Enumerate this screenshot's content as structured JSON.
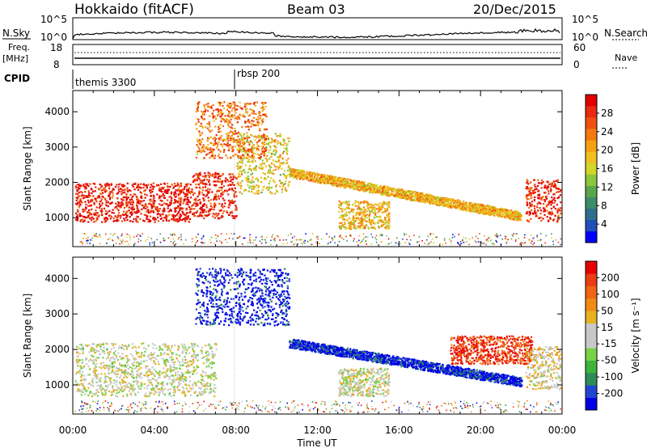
{
  "header": {
    "title": "Hokkaido (fitACF)",
    "beam": "Beam 03",
    "date": "20/Dec/2015"
  },
  "summary": {
    "nsky_label": "N.Sky",
    "nsky_ticks": [
      "10^5",
      "10^0"
    ],
    "nsearch_label": "N.Search",
    "nsearch_ticks": [
      "10^5",
      "10^0"
    ],
    "freq_label": "Freq.",
    "freq_unit": "[MHz]",
    "freq_ticks": [
      "18",
      "8"
    ],
    "nave_label": "Nave",
    "nave_ticks": [
      "60",
      "0"
    ],
    "cpid_label": "CPID",
    "cpid_segments": [
      {
        "label": "themis 3300",
        "start_hour": 0
      },
      {
        "label": "rbsp 200",
        "start_hour": 8
      }
    ]
  },
  "x_axis": {
    "label": "Time UT",
    "ticks": [
      "00:00",
      "04:00",
      "08:00",
      "12:00",
      "16:00",
      "20:00",
      "00:00"
    ],
    "range_hours": [
      0,
      24
    ]
  },
  "chart_data": [
    {
      "type": "heatmap",
      "name": "power-panel",
      "ylabel": "Slant Range [km]",
      "yticks": [
        1000,
        2000,
        3000,
        4000
      ],
      "ylim": [
        180,
        4600
      ],
      "xlim": [
        0,
        24
      ],
      "colorbar": {
        "label": "Power [dB]",
        "ticks": [
          "4",
          "8",
          "12",
          "16",
          "20",
          "24",
          "28"
        ],
        "colors": [
          "#0000ff",
          "#1f4fb8",
          "#2f6e8e",
          "#3c8c6a",
          "#5aa64c",
          "#8cc63c",
          "#d2d628",
          "#f0c020",
          "#f4a010",
          "#f47a10",
          "#ee5010",
          "#e82a10",
          "#e00000"
        ]
      },
      "regions": [
        {
          "x": [
            0.1,
            5.8
          ],
          "y": [
            900,
            2000
          ],
          "level": 0.92
        },
        {
          "x": [
            5.8,
            8.0
          ],
          "y": [
            1000,
            2300
          ],
          "level": 0.9
        },
        {
          "x": [
            8.0,
            10.6
          ],
          "y": [
            1700,
            3400
          ],
          "level": 0.55
        },
        {
          "x": [
            6.0,
            9.5
          ],
          "y": [
            2700,
            4300
          ],
          "level": 0.75
        },
        {
          "x": [
            10.6,
            22.0
          ],
          "y": [
            2300,
            1050
          ],
          "level": 0.62
        },
        {
          "x": [
            13.0,
            15.5
          ],
          "y": [
            700,
            1500
          ],
          "level": 0.6
        },
        {
          "x": [
            22.2,
            23.9
          ],
          "y": [
            900,
            2100
          ],
          "level": 0.9
        }
      ]
    },
    {
      "type": "heatmap",
      "name": "velocity-panel",
      "ylabel": "Slant Range [km]",
      "yticks": [
        1000,
        2000,
        3000,
        4000
      ],
      "ylim": [
        180,
        4600
      ],
      "xlim": [
        0,
        24
      ],
      "colorbar": {
        "label": "Velocity [m s⁻¹]",
        "ticks": [
          "200",
          "100",
          "50",
          "15",
          "-15",
          "-50",
          "-100",
          "-200"
        ],
        "colors": [
          "#0000e6",
          "#2346d2",
          "#2e8b57",
          "#3cb43c",
          "#78d246",
          "#c8c8c8",
          "#c8c8c8",
          "#e6b41e",
          "#f08c14",
          "#f06414",
          "#eb3c14",
          "#e60000"
        ]
      },
      "regions": [
        {
          "x": [
            0.1,
            7.0
          ],
          "y": [
            700,
            2200
          ],
          "level": 0.5
        },
        {
          "x": [
            6.0,
            10.6
          ],
          "y": [
            2700,
            4300
          ],
          "level": 0.04
        },
        {
          "x": [
            10.6,
            22.0
          ],
          "y": [
            2200,
            1100
          ],
          "level": 0.05
        },
        {
          "x": [
            18.5,
            22.5
          ],
          "y": [
            1600,
            2400
          ],
          "level": 0.9
        },
        {
          "x": [
            13.0,
            15.5
          ],
          "y": [
            700,
            1500
          ],
          "level": 0.5
        },
        {
          "x": [
            22.2,
            23.9
          ],
          "y": [
            900,
            2100
          ],
          "level": 0.55
        }
      ]
    }
  ]
}
